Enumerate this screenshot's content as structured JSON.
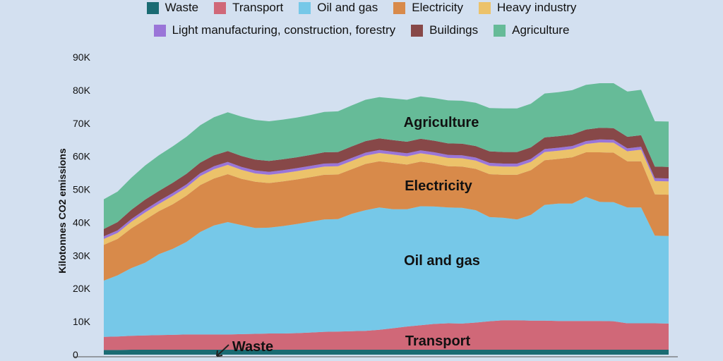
{
  "chart_data": {
    "type": "area",
    "stacked": true,
    "ylabel": "Kilotonnes CO2 emissions",
    "ylim": [
      0,
      90000
    ],
    "yticks": [
      {
        "value": 0,
        "label": "0"
      },
      {
        "value": 10000,
        "label": "10K"
      },
      {
        "value": 20000,
        "label": "20K"
      },
      {
        "value": 30000,
        "label": "30K"
      },
      {
        "value": 40000,
        "label": "40K"
      },
      {
        "value": 50000,
        "label": "50K"
      },
      {
        "value": 60000,
        "label": "60K"
      },
      {
        "value": 70000,
        "label": "70K"
      },
      {
        "value": 80000,
        "label": "80K"
      },
      {
        "value": 90000,
        "label": "90K"
      }
    ],
    "legend_rows": [
      [
        "Waste",
        "Transport",
        "Oil and gas",
        "Electricity",
        "Heavy industry"
      ],
      [
        "Light manufacturing, construction, forestry",
        "Buildings",
        "Agriculture"
      ]
    ],
    "series": [
      {
        "name": "Waste",
        "color": "#1a6b73",
        "values": [
          1400,
          1400,
          1500,
          1500,
          1500,
          1500,
          1500,
          1500,
          1500,
          1500,
          1500,
          1500,
          1500,
          1500,
          1500,
          1500,
          1500,
          1500,
          1500,
          1500,
          1500,
          1500,
          1500,
          1500,
          1500,
          1500,
          1500,
          1500,
          1500,
          1500,
          1500,
          1500,
          1500,
          1500,
          1500,
          1500,
          1500,
          1500,
          1500,
          1500,
          1500,
          1500
        ]
      },
      {
        "name": "Transport",
        "color": "#d06878",
        "values": [
          4000,
          4100,
          4200,
          4300,
          4400,
          4500,
          4600,
          4600,
          4600,
          4600,
          4700,
          4800,
          4900,
          4900,
          5000,
          5200,
          5400,
          5500,
          5600,
          5700,
          6000,
          6500,
          7000,
          7400,
          7800,
          8000,
          7900,
          8200,
          8600,
          8900,
          8900,
          8800,
          8800,
          8700,
          8700,
          8700,
          8700,
          8600,
          8000,
          8000,
          8000,
          7900
        ]
      },
      {
        "name": "Oil and gas",
        "color": "#76c8e8",
        "values": [
          17000,
          18500,
          20500,
          22000,
          24500,
          26000,
          28000,
          31000,
          33000,
          34000,
          33000,
          32000,
          32000,
          32500,
          33000,
          33500,
          34000,
          34000,
          35500,
          36500,
          37000,
          36000,
          35500,
          36000,
          35500,
          35000,
          35000,
          34000,
          31500,
          31000,
          30500,
          32000,
          35000,
          35500,
          35500,
          37500,
          36000,
          36000,
          35000,
          35000,
          26500,
          26500
        ]
      },
      {
        "name": "Electricity",
        "color": "#d88a4a",
        "values": [
          10800,
          11000,
          12000,
          13000,
          13000,
          13500,
          14000,
          14200,
          14200,
          14500,
          14000,
          14000,
          13500,
          13500,
          13500,
          13500,
          13500,
          13500,
          13500,
          14000,
          14000,
          14000,
          13500,
          13500,
          13000,
          12500,
          12500,
          12500,
          13000,
          13000,
          13500,
          13500,
          13500,
          13500,
          14000,
          13500,
          15000,
          15000,
          14000,
          14000,
          12500,
          12500
        ]
      },
      {
        "name": "Heavy industry",
        "color": "#ecc26a",
        "values": [
          1800,
          1800,
          2000,
          2200,
          2200,
          2500,
          2500,
          2700,
          2800,
          2800,
          2700,
          2500,
          2500,
          2500,
          2500,
          2500,
          2500,
          2500,
          2500,
          2500,
          2500,
          2500,
          2500,
          2500,
          2500,
          2500,
          2500,
          2500,
          2500,
          2500,
          2500,
          2500,
          2500,
          2500,
          2500,
          2500,
          3000,
          3000,
          3000,
          3500,
          4000,
          4000
        ]
      },
      {
        "name": "Light manufacturing, construction, forestry",
        "color": "#9a75d8",
        "values": [
          800,
          800,
          800,
          900,
          900,
          900,
          900,
          900,
          900,
          900,
          900,
          900,
          900,
          900,
          900,
          900,
          900,
          900,
          900,
          900,
          900,
          900,
          900,
          900,
          900,
          900,
          900,
          900,
          900,
          900,
          900,
          900,
          900,
          900,
          900,
          900,
          900,
          900,
          900,
          900,
          900,
          900
        ]
      },
      {
        "name": "Buildings",
        "color": "#874848",
        "values": [
          2200,
          2500,
          2800,
          3000,
          3000,
          3100,
          3200,
          3200,
          3300,
          3300,
          3300,
          3300,
          3300,
          3300,
          3300,
          3300,
          3400,
          3400,
          3500,
          3500,
          3500,
          3500,
          3500,
          3500,
          3500,
          3500,
          3500,
          3500,
          3500,
          3500,
          3500,
          3500,
          3500,
          3500,
          3500,
          3500,
          3500,
          3500,
          3500,
          3500,
          3500,
          3500
        ]
      },
      {
        "name": "Agriculture",
        "color": "#66bb98",
        "values": [
          9000,
          9200,
          9700,
          10300,
          10800,
          11000,
          11200,
          11300,
          11500,
          11700,
          11900,
          12000,
          12000,
          12000,
          12000,
          12100,
          12200,
          12300,
          12400,
          12500,
          12500,
          12600,
          12700,
          12800,
          12900,
          13000,
          13000,
          13100,
          13100,
          13200,
          13200,
          13200,
          13300,
          13300,
          13400,
          13500,
          13500,
          13600,
          13700,
          13700,
          13700,
          13700
        ]
      }
    ],
    "annotations": [
      {
        "text": "Agriculture",
        "series": "Agriculture"
      },
      {
        "text": "Electricity",
        "series": "Electricity"
      },
      {
        "text": "Oil and gas",
        "series": "Oil and gas"
      },
      {
        "text": "Transport",
        "series": "Transport"
      },
      {
        "text": "Waste",
        "series": "Waste",
        "arrow": true
      }
    ]
  }
}
